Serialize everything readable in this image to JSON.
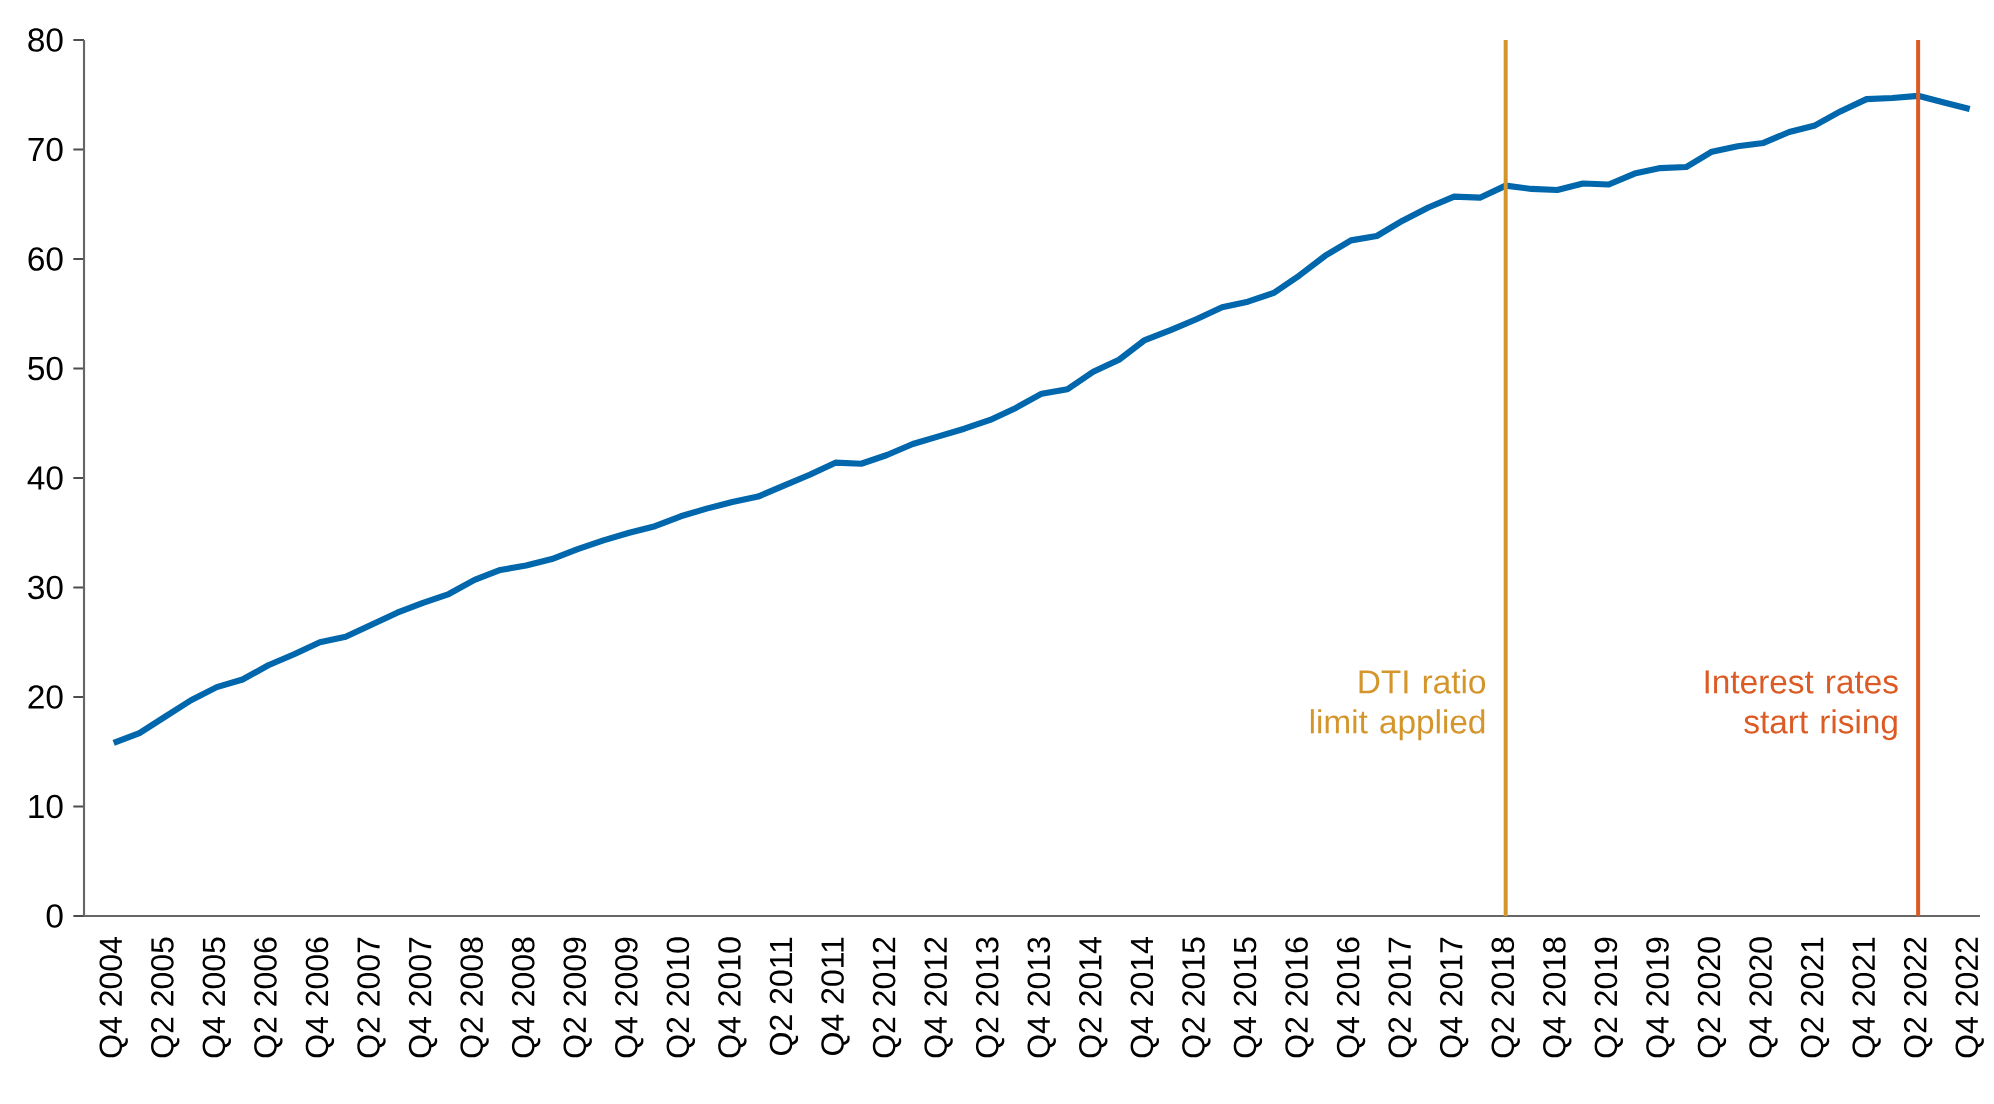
{
  "chart_data": {
    "type": "line",
    "categories": [
      "Q4 2004",
      null,
      "Q2 2005",
      null,
      "Q4 2005",
      null,
      "Q2 2006",
      null,
      "Q4 2006",
      null,
      "Q2 2007",
      null,
      "Q4 2007",
      null,
      "Q2 2008",
      null,
      "Q4 2008",
      null,
      "Q2 2009",
      null,
      "Q4 2009",
      null,
      "Q2 2010",
      null,
      "Q4 2010",
      null,
      "Q2 2011",
      null,
      "Q4 2011",
      null,
      "Q2 2012",
      null,
      "Q4 2012",
      null,
      "Q2 2013",
      null,
      "Q4 2013",
      null,
      "Q2 2014",
      null,
      "Q4 2014",
      null,
      "Q2 2015",
      null,
      "Q4 2015",
      null,
      "Q2 2016",
      null,
      "Q4 2016",
      null,
      "Q2 2017",
      null,
      "Q4 2017",
      null,
      "Q2 2018",
      null,
      "Q4 2018",
      null,
      "Q2 2019",
      null,
      "Q4 2019",
      null,
      "Q2 2020",
      null,
      "Q4 2020",
      null,
      "Q2 2021",
      null,
      "Q4 2021",
      null,
      "Q2 2022",
      null,
      "Q4 2022"
    ],
    "series": [
      {
        "color": "#0067ac",
        "values": [
          15.8,
          16.7,
          18.2,
          19.7,
          20.9,
          21.6,
          22.9,
          23.9,
          25.0,
          25.5,
          26.6,
          27.7,
          28.6,
          29.4,
          30.7,
          31.6,
          32.0,
          32.6,
          33.5,
          34.3,
          35.0,
          35.6,
          36.5,
          37.2,
          37.8,
          38.3,
          39.3,
          40.3,
          41.4,
          41.3,
          42.1,
          43.1,
          43.8,
          44.5,
          45.3,
          46.4,
          47.7,
          48.1,
          49.7,
          50.8,
          52.6,
          53.5,
          54.5,
          55.6,
          56.1,
          56.9,
          58.5,
          60.3,
          61.7,
          62.1,
          63.5,
          64.7,
          65.7,
          65.6,
          66.7,
          66.4,
          66.3,
          66.9,
          66.8,
          67.8,
          68.3,
          68.4,
          69.8,
          70.3,
          70.6,
          71.6,
          72.2,
          73.5,
          74.6,
          74.7,
          74.9,
          74.3,
          73.7
        ]
      }
    ],
    "ylim": [
      0,
      80
    ],
    "yticks": [
      0,
      10,
      20,
      30,
      40,
      50,
      60,
      70,
      80
    ],
    "ref_lines": [
      {
        "axis": "x",
        "value": "Q2 2018",
        "label": "DTI ratio limit applied",
        "color": "#d4952a"
      },
      {
        "axis": "x",
        "value": "Q2 2022",
        "label": "Interest rates start rising",
        "color": "#dc5a23"
      }
    ]
  }
}
